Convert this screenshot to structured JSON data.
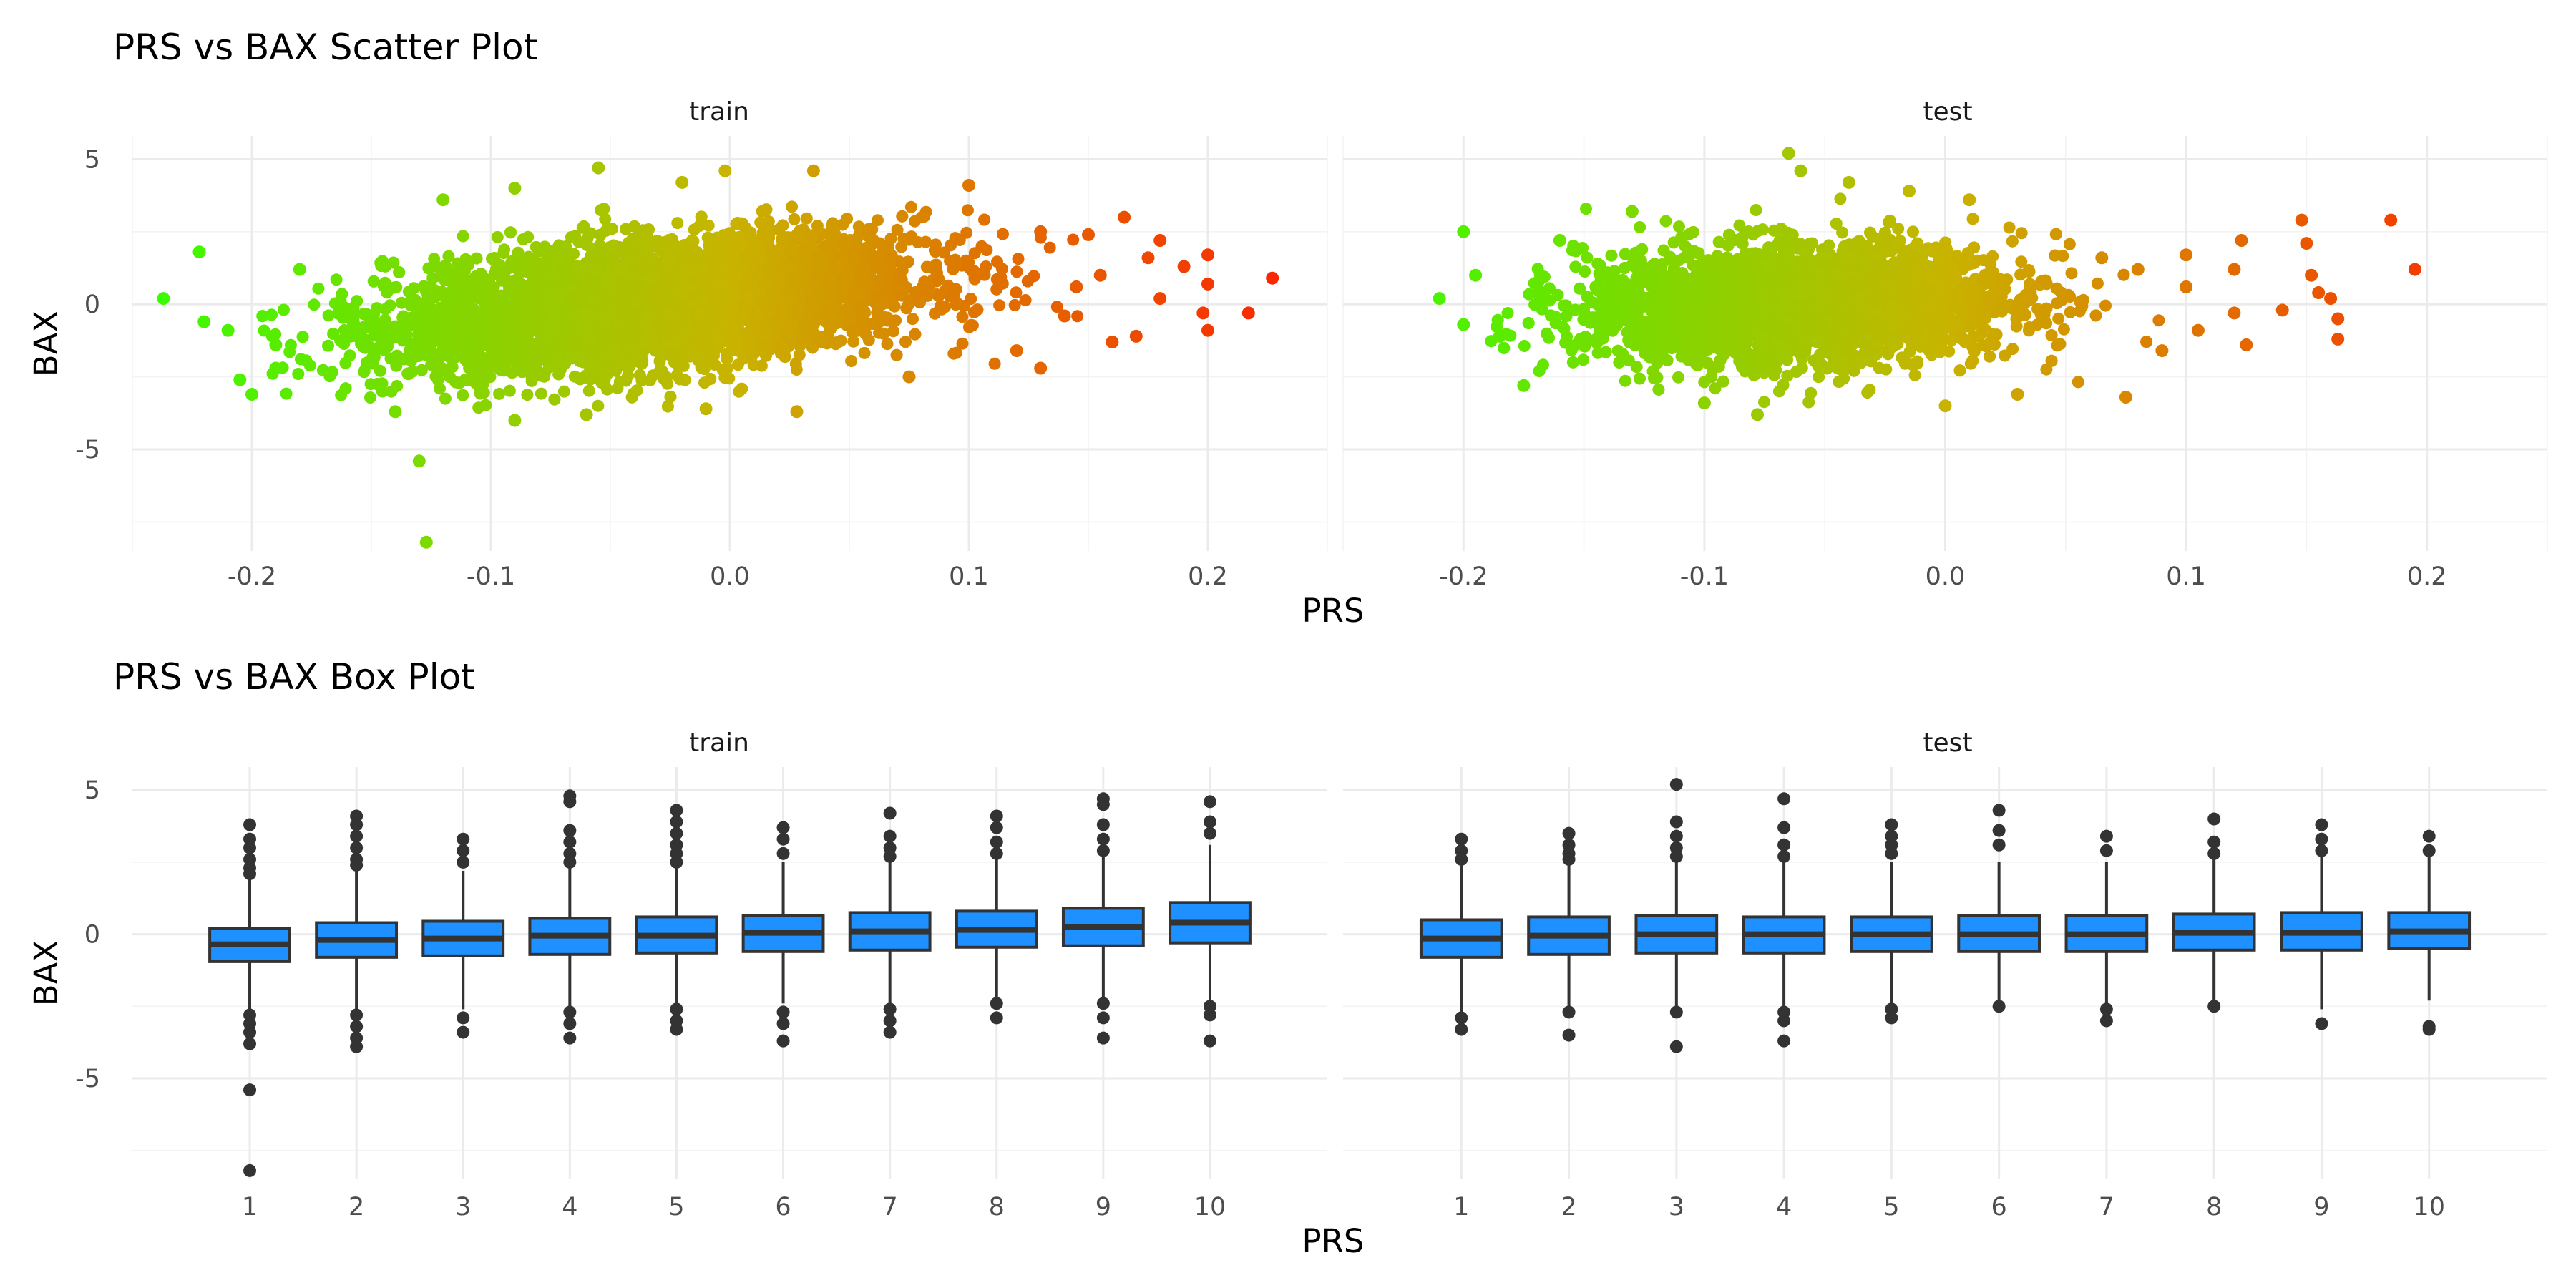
{
  "chart_data": [
    {
      "type": "scatter",
      "title": "PRS vs BAX Scatter Plot",
      "xlabel": "PRS",
      "ylabel": "BAX",
      "xlim": [
        -0.25,
        0.25
      ],
      "ylim": [
        -8.5,
        5.8
      ],
      "x_ticks": [
        -0.2,
        -0.1,
        0.0,
        0.1,
        0.2
      ],
      "y_ticks": [
        5,
        0,
        -5
      ],
      "x_tick_labels": [
        "-0.2",
        "-0.1",
        "0.0",
        "0.1",
        "0.2"
      ],
      "y_tick_labels": [
        "5",
        "0",
        "-5"
      ],
      "grid": true,
      "color_scale": {
        "by": "PRS",
        "low": "#33ff00",
        "mid": "#c8b400",
        "high": "#ff1a00"
      },
      "panels": [
        {
          "name": "train",
          "outliers": [
            {
              "x": -0.237,
              "y": 0.2
            },
            {
              "x": -0.222,
              "y": 1.8
            },
            {
              "x": -0.22,
              "y": -0.6
            },
            {
              "x": -0.21,
              "y": -0.9
            },
            {
              "x": -0.205,
              "y": -2.6
            },
            {
              "x": -0.2,
              "y": -3.1
            },
            {
              "x": -0.19,
              "y": -2.2
            },
            {
              "x": -0.18,
              "y": 1.2
            },
            {
              "x": -0.19,
              "y": -1.4
            },
            {
              "x": -0.13,
              "y": -5.4
            },
            {
              "x": -0.127,
              "y": -8.2
            },
            {
              "x": -0.14,
              "y": -3.7
            },
            {
              "x": -0.12,
              "y": 3.6
            },
            {
              "x": -0.09,
              "y": 4.0
            },
            {
              "x": -0.055,
              "y": 4.7
            },
            {
              "x": -0.02,
              "y": 4.2
            },
            {
              "x": -0.002,
              "y": 4.6
            },
            {
              "x": 0.035,
              "y": 4.6
            },
            {
              "x": -0.09,
              "y": -4.0
            },
            {
              "x": -0.06,
              "y": -3.8
            },
            {
              "x": -0.01,
              "y": -3.6
            },
            {
              "x": 0.028,
              "y": -3.7
            },
            {
              "x": 0.075,
              "y": -2.5
            },
            {
              "x": 0.1,
              "y": 4.1
            },
            {
              "x": 0.13,
              "y": 2.5
            },
            {
              "x": 0.15,
              "y": 2.4
            },
            {
              "x": 0.165,
              "y": 3.0
            },
            {
              "x": 0.175,
              "y": 1.6
            },
            {
              "x": 0.18,
              "y": 2.2
            },
            {
              "x": 0.19,
              "y": 1.3
            },
            {
              "x": 0.2,
              "y": 1.7
            },
            {
              "x": 0.2,
              "y": 0.7
            },
            {
              "x": 0.198,
              "y": -0.3
            },
            {
              "x": 0.2,
              "y": -0.9
            },
            {
              "x": 0.217,
              "y": -0.3
            },
            {
              "x": 0.227,
              "y": 0.9
            },
            {
              "x": 0.13,
              "y": -2.2
            },
            {
              "x": 0.16,
              "y": -1.3
            },
            {
              "x": 0.17,
              "y": -1.1
            },
            {
              "x": 0.14,
              "y": -0.4
            },
            {
              "x": 0.145,
              "y": 0.6
            },
            {
              "x": 0.155,
              "y": 1.0
            },
            {
              "x": 0.18,
              "y": 0.2
            },
            {
              "x": 0.12,
              "y": -1.6
            }
          ]
        },
        {
          "name": "test",
          "outliers": [
            {
              "x": -0.21,
              "y": 0.2
            },
            {
              "x": -0.2,
              "y": 2.5
            },
            {
              "x": -0.2,
              "y": -0.7
            },
            {
              "x": -0.195,
              "y": 1.0
            },
            {
              "x": -0.185,
              "y": -1.1
            },
            {
              "x": -0.175,
              "y": -2.8
            },
            {
              "x": -0.16,
              "y": 2.2
            },
            {
              "x": -0.13,
              "y": 3.2
            },
            {
              "x": -0.1,
              "y": -3.4
            },
            {
              "x": -0.078,
              "y": -3.8
            },
            {
              "x": -0.065,
              "y": 5.2
            },
            {
              "x": -0.06,
              "y": 4.6
            },
            {
              "x": -0.04,
              "y": 4.2
            },
            {
              "x": -0.015,
              "y": 3.9
            },
            {
              "x": 0.01,
              "y": 3.6
            },
            {
              "x": 0.0,
              "y": -3.5
            },
            {
              "x": 0.03,
              "y": -3.1
            },
            {
              "x": 0.075,
              "y": -3.2
            },
            {
              "x": 0.065,
              "y": 1.6
            },
            {
              "x": 0.1,
              "y": 1.7
            },
            {
              "x": 0.1,
              "y": 0.6
            },
            {
              "x": 0.105,
              "y": -0.9
            },
            {
              "x": 0.123,
              "y": 2.2
            },
            {
              "x": 0.12,
              "y": 1.2
            },
            {
              "x": 0.12,
              "y": -0.3
            },
            {
              "x": 0.125,
              "y": -1.4
            },
            {
              "x": 0.14,
              "y": -0.2
            },
            {
              "x": 0.148,
              "y": 2.9
            },
            {
              "x": 0.15,
              "y": 2.1
            },
            {
              "x": 0.152,
              "y": 1.0
            },
            {
              "x": 0.155,
              "y": 0.4
            },
            {
              "x": 0.16,
              "y": 0.2
            },
            {
              "x": 0.163,
              "y": -0.5
            },
            {
              "x": 0.163,
              "y": -1.2
            },
            {
              "x": 0.185,
              "y": 2.9
            },
            {
              "x": 0.195,
              "y": 1.2
            },
            {
              "x": 0.09,
              "y": -1.6
            },
            {
              "x": 0.08,
              "y": 1.2
            }
          ]
        }
      ]
    },
    {
      "type": "box",
      "title": "PRS vs BAX Box Plot",
      "xlabel": "PRS",
      "ylabel": "BAX",
      "categories": [
        "1",
        "2",
        "3",
        "4",
        "5",
        "6",
        "7",
        "8",
        "9",
        "10"
      ],
      "ylim": [
        -8.5,
        5.8
      ],
      "y_ticks": [
        5,
        0,
        -5
      ],
      "y_tick_labels": [
        "5",
        "0",
        "-5"
      ],
      "grid": true,
      "fill": "#1e90ff",
      "panels": [
        {
          "name": "train",
          "boxes": [
            {
              "q1": -0.95,
              "median": -0.35,
              "q3": 0.2,
              "whisker_low": -2.7,
              "whisker_high": 1.9,
              "outliers": [
                3.8,
                3.3,
                3.0,
                2.6,
                2.3,
                2.1,
                -2.8,
                -3.1,
                -3.4,
                -3.8,
                -5.4,
                -8.2
              ]
            },
            {
              "q1": -0.8,
              "median": -0.2,
              "q3": 0.4,
              "whisker_low": -2.6,
              "whisker_high": 2.2,
              "outliers": [
                4.1,
                3.8,
                3.4,
                3.0,
                2.6,
                2.4,
                -2.8,
                -3.2,
                -3.6,
                -3.9
              ]
            },
            {
              "q1": -0.75,
              "median": -0.15,
              "q3": 0.45,
              "whisker_low": -2.6,
              "whisker_high": 2.2,
              "outliers": [
                3.3,
                2.9,
                2.5,
                -2.9,
                -3.4
              ]
            },
            {
              "q1": -0.7,
              "median": -0.05,
              "q3": 0.55,
              "whisker_low": -2.5,
              "whisker_high": 2.3,
              "outliers": [
                4.8,
                4.6,
                3.6,
                3.2,
                2.8,
                2.5,
                -2.7,
                -3.1,
                -3.6
              ]
            },
            {
              "q1": -0.65,
              "median": -0.05,
              "q3": 0.6,
              "whisker_low": -2.4,
              "whisker_high": 2.4,
              "outliers": [
                4.3,
                3.9,
                3.5,
                3.1,
                2.8,
                2.5,
                -2.6,
                -3.0,
                -3.3
              ]
            },
            {
              "q1": -0.6,
              "median": 0.05,
              "q3": 0.65,
              "whisker_low": -2.4,
              "whisker_high": 2.5,
              "outliers": [
                3.7,
                3.3,
                2.8,
                -2.7,
                -3.1,
                -3.7
              ]
            },
            {
              "q1": -0.55,
              "median": 0.1,
              "q3": 0.75,
              "whisker_low": -2.4,
              "whisker_high": 2.6,
              "outliers": [
                4.2,
                3.4,
                3.0,
                2.7,
                -2.6,
                -3.0,
                -3.4
              ]
            },
            {
              "q1": -0.45,
              "median": 0.15,
              "q3": 0.8,
              "whisker_low": -2.3,
              "whisker_high": 2.6,
              "outliers": [
                4.1,
                3.7,
                3.2,
                2.8,
                -2.4,
                -2.9
              ]
            },
            {
              "q1": -0.4,
              "median": 0.25,
              "q3": 0.9,
              "whisker_low": -2.2,
              "whisker_high": 2.7,
              "outliers": [
                4.7,
                4.5,
                3.8,
                3.3,
                2.9,
                -2.4,
                -2.9,
                -3.6
              ]
            },
            {
              "q1": -0.3,
              "median": 0.4,
              "q3": 1.1,
              "whisker_low": -2.3,
              "whisker_high": 3.1,
              "outliers": [
                4.6,
                3.9,
                3.5,
                -2.5,
                -2.8,
                -3.7
              ]
            }
          ]
        },
        {
          "name": "test",
          "boxes": [
            {
              "q1": -0.8,
              "median": -0.15,
              "q3": 0.5,
              "whisker_low": -2.7,
              "whisker_high": 2.4,
              "outliers": [
                3.3,
                2.9,
                2.6,
                -2.9,
                -3.3
              ]
            },
            {
              "q1": -0.7,
              "median": -0.05,
              "q3": 0.6,
              "whisker_low": -2.6,
              "whisker_high": 2.4,
              "outliers": [
                3.5,
                3.1,
                2.8,
                2.6,
                -2.7,
                -3.5
              ]
            },
            {
              "q1": -0.65,
              "median": 0.0,
              "q3": 0.65,
              "whisker_low": -2.6,
              "whisker_high": 2.5,
              "outliers": [
                5.2,
                3.9,
                3.4,
                3.0,
                2.7,
                -2.7,
                -3.9
              ]
            },
            {
              "q1": -0.65,
              "median": 0.0,
              "q3": 0.6,
              "whisker_low": -2.5,
              "whisker_high": 2.5,
              "outliers": [
                4.7,
                3.7,
                3.1,
                2.7,
                -2.7,
                -3.0,
                -3.7
              ]
            },
            {
              "q1": -0.6,
              "median": 0.0,
              "q3": 0.6,
              "whisker_low": -2.5,
              "whisker_high": 2.5,
              "outliers": [
                3.8,
                3.4,
                3.1,
                2.8,
                -2.6,
                -2.9
              ]
            },
            {
              "q1": -0.6,
              "median": 0.0,
              "q3": 0.65,
              "whisker_low": -2.5,
              "whisker_high": 2.5,
              "outliers": [
                4.3,
                3.6,
                3.1,
                -2.5
              ]
            },
            {
              "q1": -0.6,
              "median": 0.0,
              "q3": 0.65,
              "whisker_low": -2.5,
              "whisker_high": 2.5,
              "outliers": [
                3.4,
                2.9,
                -2.6,
                -3.0
              ]
            },
            {
              "q1": -0.55,
              "median": 0.05,
              "q3": 0.7,
              "whisker_low": -2.4,
              "whisker_high": 2.6,
              "outliers": [
                4.0,
                3.2,
                2.8,
                -2.5
              ]
            },
            {
              "q1": -0.55,
              "median": 0.05,
              "q3": 0.75,
              "whisker_low": -2.6,
              "whisker_high": 2.7,
              "outliers": [
                3.8,
                3.3,
                2.9,
                -3.1
              ]
            },
            {
              "q1": -0.5,
              "median": 0.1,
              "q3": 0.75,
              "whisker_low": -2.3,
              "whisker_high": 2.7,
              "outliers": [
                3.4,
                2.9,
                -3.2,
                -3.3
              ]
            }
          ]
        }
      ]
    }
  ]
}
